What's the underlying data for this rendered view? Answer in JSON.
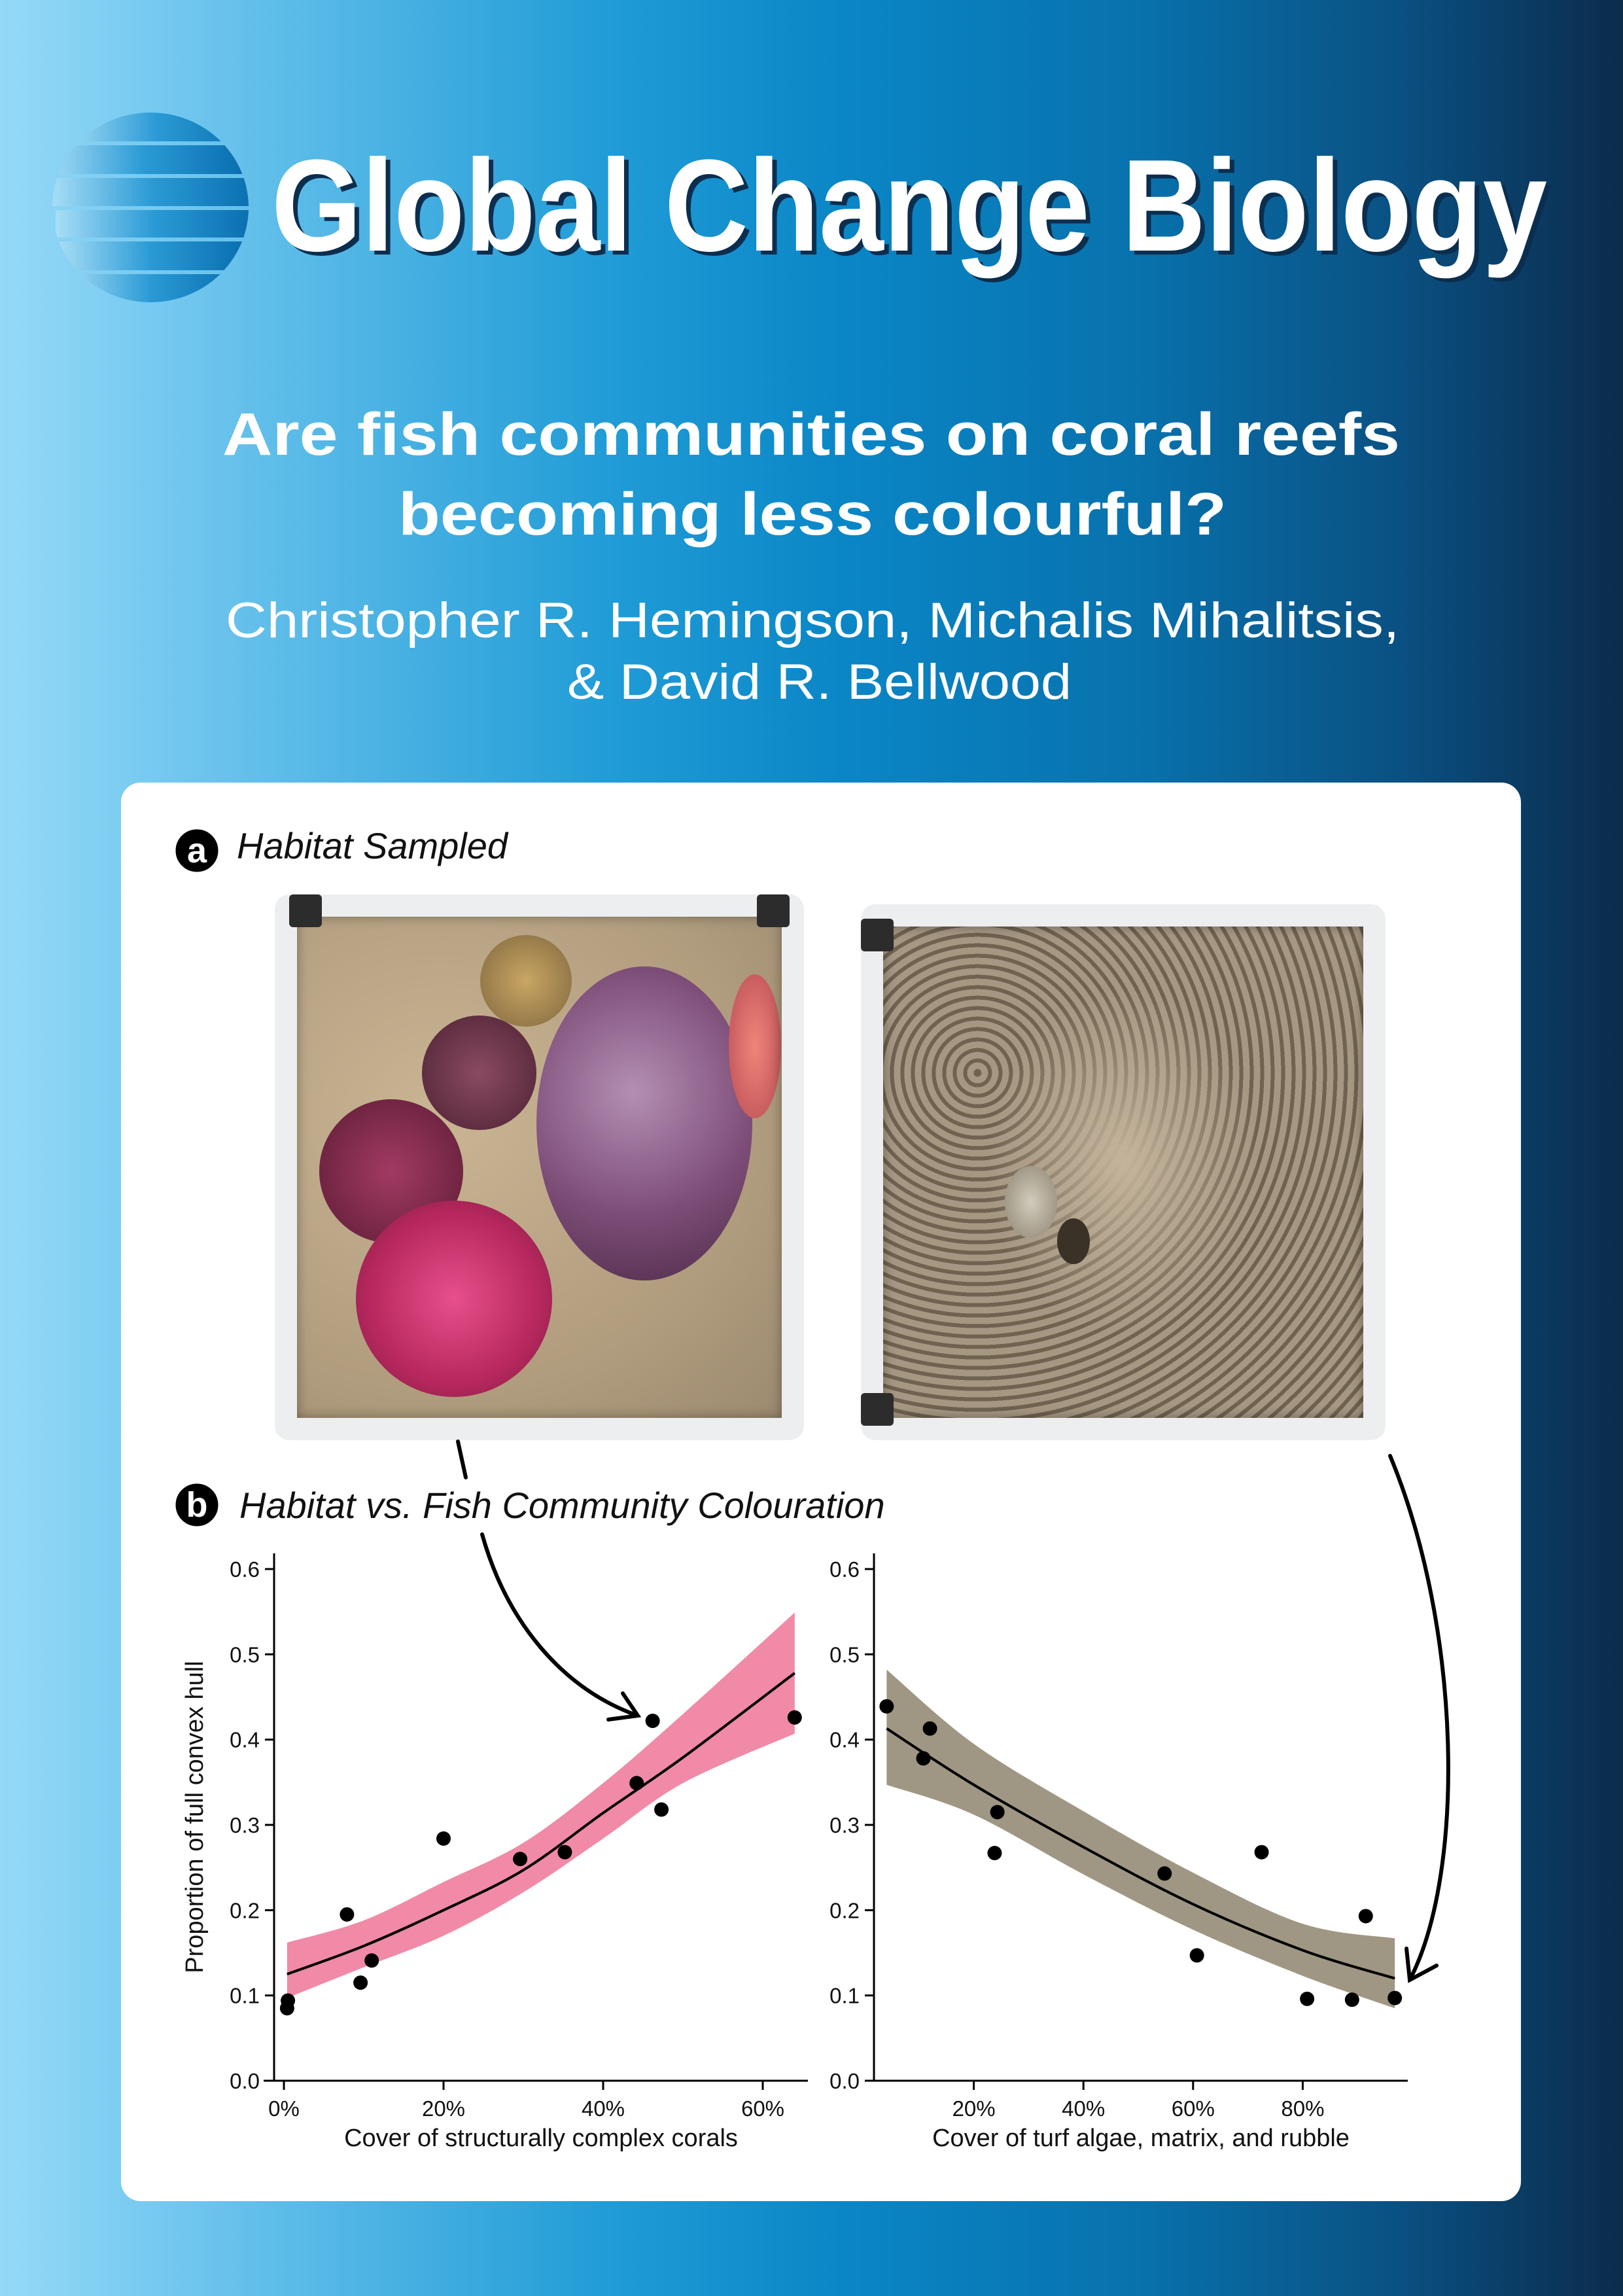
{
  "journal": {
    "name": "Global Change Biology",
    "logo_icon": "striped-sphere-icon"
  },
  "article": {
    "title_lines": [
      "Are fish communities on coral reefs",
      "becoming less colourful?"
    ],
    "author_lines": [
      "Christopher R. Hemingson, Michalis Mihalitsis,",
      "& David R. Bellwood"
    ]
  },
  "panel_a": {
    "badge": "a",
    "title": "Habitat Sampled",
    "photos": [
      "coral-rich-quadrat",
      "turf-algae-rubble-quadrat"
    ]
  },
  "panel_b": {
    "badge": "b",
    "title": "Habitat vs. Fish Community Colouration"
  },
  "colors": {
    "coral_band": "#f08aa7",
    "algae_band": "#9f9783",
    "bg_light": "#95d9f8",
    "bg_dark": "#0b2b4b"
  },
  "chart_data": [
    {
      "type": "scatter",
      "xlabel": "Cover of structurally complex corals",
      "ylabel": "Proportion of full convex hull",
      "xlim": [
        0,
        65
      ],
      "ylim": [
        0,
        0.6
      ],
      "xticks": [
        0,
        20,
        40,
        60
      ],
      "xtick_labels": [
        "0%",
        "20%",
        "40%",
        "60%"
      ],
      "yticks": [
        0,
        0.1,
        0.2,
        0.3,
        0.4,
        0.5,
        0.6
      ],
      "ytick_labels": [
        "0.0",
        "0.1",
        "0.2",
        "0.3",
        "0.4",
        "0.5",
        "0.6"
      ],
      "points": [
        [
          0.4,
          0.085
        ],
        [
          0.5,
          0.094
        ],
        [
          7.9,
          0.195
        ],
        [
          9.6,
          0.115
        ],
        [
          11,
          0.141
        ],
        [
          20,
          0.284
        ],
        [
          29.6,
          0.26
        ],
        [
          35.2,
          0.268
        ],
        [
          44.2,
          0.349
        ],
        [
          46.2,
          0.422
        ],
        [
          47.3,
          0.318
        ],
        [
          64,
          0.426
        ]
      ],
      "fit": {
        "x": [
          0.4,
          10,
          20,
          30,
          40,
          50,
          64
        ],
        "y": [
          0.125,
          0.158,
          0.2,
          0.247,
          0.314,
          0.379,
          0.478
        ],
        "lower": [
          0.097,
          0.133,
          0.17,
          0.221,
          0.284,
          0.349,
          0.407
        ],
        "upper": [
          0.162,
          0.188,
          0.233,
          0.279,
          0.349,
          0.43,
          0.549
        ]
      },
      "band_color": "#f08aa7",
      "grid": false
    },
    {
      "type": "scatter",
      "xlabel": "Cover of turf algae, matrix, and rubble",
      "ylabel": "",
      "xlim": [
        0,
        100
      ],
      "ylim": [
        0,
        0.6
      ],
      "xticks": [
        20,
        40,
        60,
        80
      ],
      "xtick_labels": [
        "20%",
        "40%",
        "60%",
        "80%"
      ],
      "yticks": [
        0,
        0.1,
        0.2,
        0.3,
        0.4,
        0.5,
        0.6
      ],
      "ytick_labels": [
        "0.0",
        "0.1",
        "0.2",
        "0.3",
        "0.4",
        "0.5",
        "0.6"
      ],
      "points": [
        [
          4.1,
          0.439
        ],
        [
          10.8,
          0.378
        ],
        [
          12,
          0.413
        ],
        [
          24.3,
          0.315
        ],
        [
          23.8,
          0.267
        ],
        [
          54.8,
          0.243
        ],
        [
          60.7,
          0.147
        ],
        [
          72.5,
          0.268
        ],
        [
          80.8,
          0.096
        ],
        [
          89,
          0.095
        ],
        [
          91.5,
          0.193
        ],
        [
          96.8,
          0.097
        ]
      ],
      "fit": {
        "x": [
          4.1,
          20,
          40,
          60,
          80,
          96.8
        ],
        "y": [
          0.413,
          0.347,
          0.274,
          0.207,
          0.153,
          0.12
        ],
        "lower": [
          0.347,
          0.312,
          0.242,
          0.177,
          0.123,
          0.085
        ],
        "upper": [
          0.482,
          0.395,
          0.316,
          0.244,
          0.184,
          0.167
        ]
      },
      "band_color": "#9f9783",
      "grid": false
    }
  ]
}
